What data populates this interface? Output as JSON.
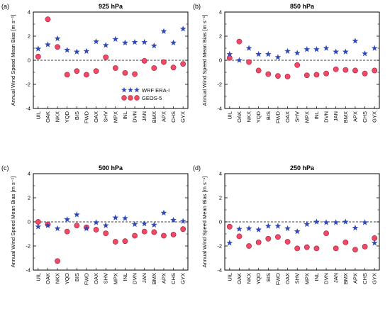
{
  "colors": {
    "wrf": "#2f48b8",
    "geos": "#f04a68",
    "geos_stroke": "#a01830"
  },
  "legend": {
    "wrf_label": "WRF ERA-I",
    "geos_label": "GEOS-5"
  },
  "chart_data": [
    {
      "type": "scatter",
      "panel": "(a)",
      "title": "925 hPa",
      "ylabel": "Annual Wind Speed Mean Bias [m s⁻¹]",
      "ylim": [
        -4,
        4
      ],
      "yticks": [
        -4,
        -2,
        0,
        2,
        4
      ],
      "reference_line": 0,
      "legend_position": "bottom-right",
      "categories": [
        "UIL",
        "OAK",
        "NKX",
        "YQD",
        "BIS",
        "FWD",
        "OAX",
        "SHV",
        "MPX",
        "INL",
        "DVN",
        "JAN",
        "BMX",
        "APX",
        "CHS",
        "GYX"
      ],
      "series": [
        {
          "name": "WRF ERA-I",
          "values": [
            0.95,
            1.3,
            1.8,
            0.85,
            0.7,
            0.75,
            1.55,
            1.25,
            1.75,
            1.45,
            1.5,
            1.5,
            1.2,
            2.4,
            1.45,
            2.6
          ]
        },
        {
          "name": "GEOS-5",
          "values": [
            0.3,
            3.4,
            1.1,
            -1.2,
            -0.9,
            -1.2,
            -0.9,
            0.25,
            -0.65,
            -1.05,
            -1.15,
            -0.05,
            -0.65,
            -0.15,
            -0.6,
            -0.3
          ]
        }
      ]
    },
    {
      "type": "scatter",
      "panel": "(b)",
      "title": "850 hPa",
      "ylabel": "Annual Wind Speed Mean Bias [m s⁻¹]",
      "ylim": [
        -4,
        4
      ],
      "yticks": [
        -4,
        -2,
        0,
        2,
        4
      ],
      "reference_line": 0,
      "categories": [
        "UIL",
        "OAK",
        "NKX",
        "YQD",
        "BIS",
        "FWD",
        "OAX",
        "SHV",
        "MPX",
        "INL",
        "DVN",
        "JAN",
        "BMX",
        "APX",
        "CHS",
        "GYX"
      ],
      "series": [
        {
          "name": "WRF ERA-I",
          "values": [
            0.5,
            0.0,
            1.0,
            0.5,
            0.5,
            0.25,
            0.75,
            0.6,
            0.9,
            0.9,
            1.0,
            0.7,
            0.7,
            1.6,
            0.55,
            1.0
          ]
        },
        {
          "name": "GEOS-5",
          "values": [
            0.2,
            1.55,
            -0.15,
            -0.85,
            -1.15,
            -1.3,
            -1.35,
            -0.4,
            -1.25,
            -1.2,
            -1.1,
            -0.75,
            -0.8,
            -0.85,
            -1.1,
            -0.85
          ]
        }
      ]
    },
    {
      "type": "scatter",
      "panel": "(c)",
      "title": "500 hPa",
      "ylabel": "Annual Wind Speed Mean Bias [m s⁻¹]",
      "ylim": [
        -4,
        4
      ],
      "yticks": [
        -4,
        -2,
        0,
        2,
        4
      ],
      "reference_line": 0,
      "categories": [
        "UIL",
        "OAK",
        "NKX",
        "YQD",
        "BIS",
        "FWD",
        "OAX",
        "SHV",
        "MPX",
        "INL",
        "DVN",
        "JAN",
        "BMX",
        "APX",
        "CHS",
        "GYX"
      ],
      "series": [
        {
          "name": "WRF ERA-I",
          "values": [
            -0.4,
            -0.3,
            -0.55,
            0.2,
            0.6,
            -0.55,
            -0.05,
            -0.3,
            0.35,
            0.3,
            -0.2,
            -0.15,
            -0.25,
            0.75,
            0.15,
            0.05
          ]
        },
        {
          "name": "GEOS-5",
          "values": [
            0.0,
            -0.2,
            -3.25,
            -0.8,
            -0.3,
            -0.45,
            -0.65,
            -0.95,
            -1.65,
            -1.6,
            -1.15,
            -0.8,
            -0.85,
            -1.15,
            -1.05,
            -0.6
          ]
        }
      ]
    },
    {
      "type": "scatter",
      "panel": "(d)",
      "title": "250 hPa",
      "ylabel": "Annual Wind Speed Mean Bias [m s⁻¹]",
      "ylim": [
        -4,
        4
      ],
      "yticks": [
        -4,
        -2,
        0,
        2,
        4
      ],
      "reference_line": 0,
      "categories": [
        "UIL",
        "OAK",
        "NKX",
        "YQD",
        "BIS",
        "FWD",
        "OAX",
        "SHV",
        "MPX",
        "INL",
        "DVN",
        "JAN",
        "BMX",
        "APX",
        "CHS",
        "GYX"
      ],
      "series": [
        {
          "name": "WRF ERA-I",
          "values": [
            -1.75,
            -0.6,
            -0.55,
            -0.65,
            -0.35,
            -0.35,
            -0.55,
            -0.8,
            -0.2,
            0.0,
            -0.05,
            -0.05,
            0.0,
            -0.5,
            -0.05,
            -1.75
          ]
        },
        {
          "name": "GEOS-5",
          "values": [
            -0.4,
            -1.2,
            -2.0,
            -1.7,
            -1.4,
            -1.25,
            -1.65,
            -2.2,
            -2.1,
            -2.2,
            -0.95,
            -2.2,
            -1.7,
            -2.3,
            -2.05,
            -1.35
          ]
        }
      ]
    }
  ]
}
